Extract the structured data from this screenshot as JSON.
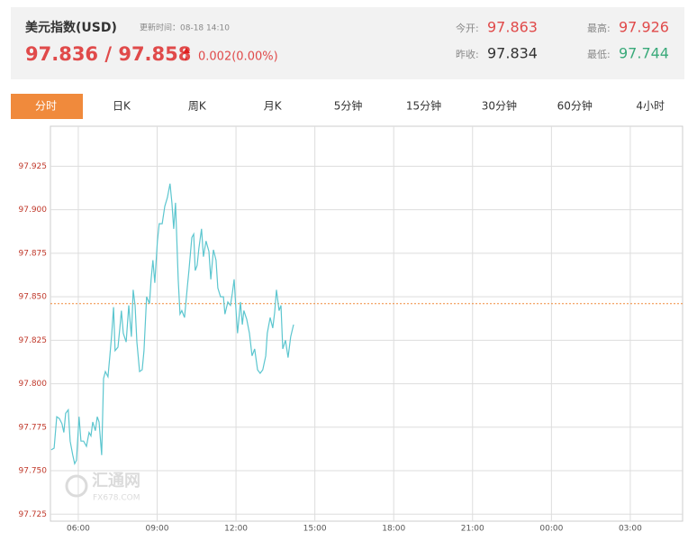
{
  "header": {
    "title": "美元指数(USD)",
    "update_time": "更新时间：08-18 14:10",
    "price": "97.836 / 97.858",
    "change": "0.002(0.00%)",
    "stats": [
      {
        "label": "今开:",
        "value": "97.863"
      },
      {
        "label": "昨收:",
        "value": "97.834"
      },
      {
        "label": "最高:",
        "value": "97.926"
      },
      {
        "label": "最低:",
        "value": "97.744"
      }
    ]
  },
  "tabs": [
    "分时",
    "日K",
    "周K",
    "月K",
    "5分钟",
    "15分钟",
    "30分钟",
    "60分钟",
    "4小时"
  ],
  "watermark": {
    "name": "汇通网",
    "site": "FX678.COM"
  },
  "chart_data": {
    "type": "line",
    "color": "#5cc6cf",
    "reference_line": 97.846,
    "reference_color": "#f08a3c",
    "grid": true,
    "xlim": [
      4.94,
      28.99
    ],
    "ylim": [
      97.721,
      97.948
    ],
    "xticks": [
      {
        "value": 6,
        "label": "06:00"
      },
      {
        "value": 9,
        "label": "09:00"
      },
      {
        "value": 12,
        "label": "12:00"
      },
      {
        "value": 15,
        "label": "15:00"
      },
      {
        "value": 18,
        "label": "18:00"
      },
      {
        "value": 21,
        "label": "21:00"
      },
      {
        "value": 24,
        "label": "00:00"
      },
      {
        "value": 27,
        "label": "03:00"
      }
    ],
    "yticks": [
      97.725,
      {
        "value": 97.75,
        "label": "97.750"
      },
      97.775,
      {
        "value": 97.8,
        "label": "97.800"
      },
      97.825,
      {
        "value": 97.85,
        "label": "97.850"
      },
      97.875,
      {
        "value": 97.9,
        "label": "97.900"
      },
      97.925
    ],
    "x": [
      4.97,
      5.08,
      5.18,
      5.28,
      5.38,
      5.45,
      5.52,
      5.62,
      5.69,
      5.79,
      5.86,
      5.93,
      6.03,
      6.1,
      6.2,
      6.31,
      6.41,
      6.48,
      6.55,
      6.65,
      6.72,
      6.79,
      6.89,
      6.96,
      7.03,
      7.13,
      7.2,
      7.27,
      7.34,
      7.4,
      7.51,
      7.58,
      7.64,
      7.71,
      7.82,
      7.92,
      8.02,
      8.09,
      8.16,
      8.23,
      8.33,
      8.43,
      8.5,
      8.6,
      8.71,
      8.77,
      8.84,
      8.91,
      9.01,
      9.08,
      9.19,
      9.29,
      9.39,
      9.49,
      9.56,
      9.63,
      9.7,
      9.8,
      9.87,
      9.94,
      10.04,
      10.15,
      10.21,
      10.32,
      10.39,
      10.45,
      10.52,
      10.59,
      10.69,
      10.76,
      10.86,
      10.97,
      11.04,
      11.14,
      11.24,
      11.31,
      11.41,
      11.52,
      11.58,
      11.69,
      11.79,
      11.86,
      11.93,
      12.0,
      12.06,
      12.17,
      12.24,
      12.3,
      12.41,
      12.51,
      12.61,
      12.71,
      12.82,
      12.92,
      13.02,
      13.13,
      13.19,
      13.3,
      13.4,
      13.47,
      13.54,
      13.64,
      13.71,
      13.78,
      13.88,
      13.98,
      14.08,
      14.19
    ],
    "values": [
      97.762,
      97.763,
      97.781,
      97.78,
      97.777,
      97.772,
      97.783,
      97.785,
      97.767,
      97.759,
      97.754,
      97.756,
      97.781,
      97.767,
      97.767,
      97.764,
      97.772,
      97.77,
      97.778,
      97.773,
      97.781,
      97.778,
      97.759,
      97.803,
      97.807,
      97.804,
      97.816,
      97.828,
      97.844,
      97.819,
      97.821,
      97.832,
      97.842,
      97.829,
      97.824,
      97.845,
      97.827,
      97.854,
      97.845,
      97.824,
      97.807,
      97.808,
      97.819,
      97.85,
      97.846,
      97.86,
      97.871,
      97.858,
      97.882,
      97.892,
      97.892,
      97.902,
      97.907,
      97.915,
      97.904,
      97.889,
      97.904,
      97.86,
      97.84,
      97.842,
      97.838,
      97.856,
      97.865,
      97.884,
      97.886,
      97.865,
      97.868,
      97.878,
      97.889,
      97.873,
      97.882,
      97.876,
      97.86,
      97.877,
      97.871,
      97.855,
      97.85,
      97.85,
      97.84,
      97.847,
      97.845,
      97.852,
      97.86,
      97.842,
      97.829,
      97.847,
      97.834,
      97.842,
      97.837,
      97.829,
      97.816,
      97.82,
      97.808,
      97.806,
      97.808,
      97.816,
      97.829,
      97.838,
      97.832,
      97.841,
      97.854,
      97.842,
      97.845,
      97.82,
      97.825,
      97.815,
      97.827,
      97.834
    ]
  }
}
